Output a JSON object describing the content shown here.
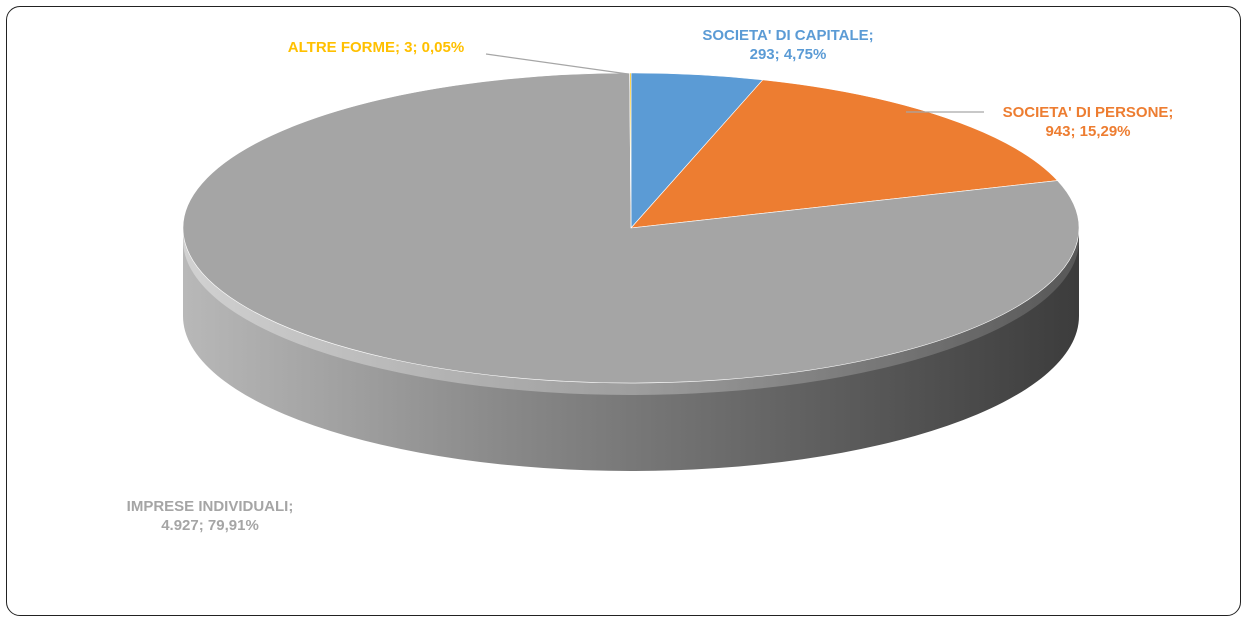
{
  "chart_data": {
    "type": "pie",
    "style": "3d",
    "slices": [
      {
        "name": "SOCIETA' DI CAPITALE",
        "value": 293,
        "percent": 4.75,
        "label_line1": "SOCIETA'  DI CAPITALE;",
        "label_line2": "293; 4,75%",
        "color": "#5b9bd5"
      },
      {
        "name": "SOCIETA' DI PERSONE",
        "value": 943,
        "percent": 15.29,
        "label_line1": "SOCIETA'  DI PERSONE;",
        "label_line2": "943; 15,29%",
        "color": "#ed7d31"
      },
      {
        "name": "IMPRESE INDIVIDUALI",
        "value": 4927,
        "percent": 79.91,
        "label_line1": "IMPRESE  INDIVIDUALI;",
        "label_line2": "4.927; 79,91%",
        "color": "#a5a5a5"
      },
      {
        "name": "ALTRE FORME",
        "value": 3,
        "percent": 0.05,
        "label_line1": "ALTRE FORME;  3; 0,05%",
        "label_line2": "",
        "color": "#ffc000"
      }
    ],
    "legend": "none"
  }
}
